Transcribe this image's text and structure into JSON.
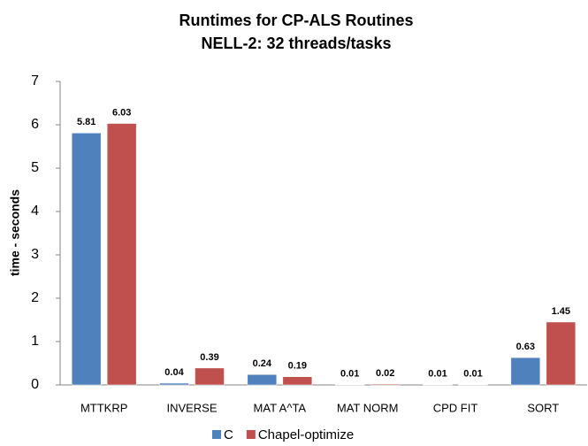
{
  "chart_data": {
    "type": "bar",
    "title": "Runtimes for CP-ALS Routines",
    "subtitle": "NELL-2: 32 threads/tasks",
    "y_label": "time - seconds",
    "categories": [
      "MTTKRP",
      "INVERSE",
      "MAT A^TA",
      "MAT NORM",
      "CPD FIT",
      "SORT"
    ],
    "series": [
      {
        "name": "C",
        "color": "#4f81bd",
        "values": [
          5.81,
          0.04,
          0.24,
          0.01,
          0.01,
          0.63
        ]
      },
      {
        "name": "Chapel-optimize",
        "color": "#c0504d",
        "values": [
          6.03,
          0.39,
          0.19,
          0.02,
          0.01,
          1.45
        ]
      }
    ],
    "ylim": [
      0,
      7
    ],
    "yticks": [
      0,
      1,
      2,
      3,
      4,
      5,
      6,
      7
    ],
    "grid": false,
    "legend": "bottom"
  }
}
